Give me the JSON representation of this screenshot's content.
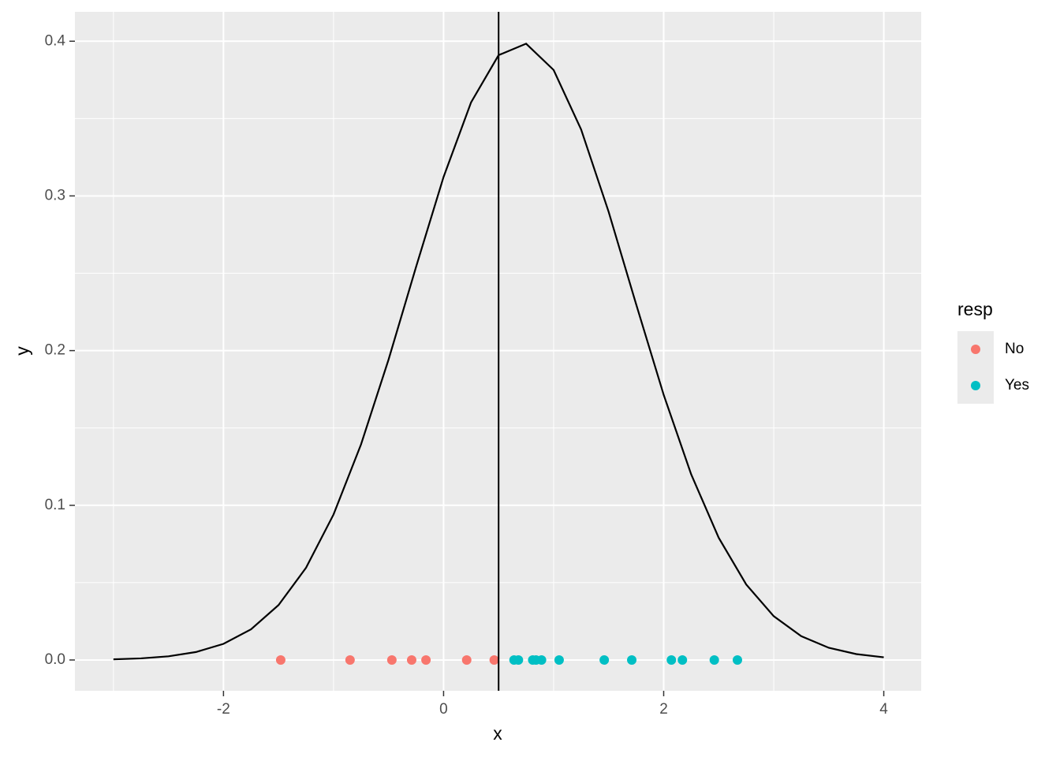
{
  "chart_data": {
    "type": "scatter",
    "xlabel": "x",
    "ylabel": "y",
    "xlim": [
      -3.35,
      4.34
    ],
    "ylim": [
      -0.0199,
      0.419
    ],
    "xticks": [
      -2,
      0,
      2,
      4
    ],
    "yticks": [
      {
        "value": 0,
        "label": "0.0"
      },
      0.1,
      0.2,
      0.3,
      0.4
    ],
    "xminor": [
      -3,
      -1,
      1,
      3
    ],
    "yminor": [
      0.05,
      0.15,
      0.25,
      0.35
    ],
    "grid": true,
    "vline": 0.5,
    "legend_title": "resp",
    "legend": "right",
    "curve": {
      "color": "#000000",
      "x": [
        -3,
        -2.75,
        -2.5,
        -2.25,
        -2,
        -1.75,
        -1.5,
        -1.25,
        -1,
        -0.75,
        -0.5,
        -0.25,
        0,
        0.25,
        0.5,
        0.75,
        1,
        1.25,
        1.5,
        1.75,
        2,
        2.25,
        2.5,
        2.75,
        3,
        3.25,
        3.5,
        3.75,
        4
      ],
      "values": [
        0.000425,
        0.00104,
        0.00238,
        0.00514,
        0.01042,
        0.01984,
        0.03547,
        0.05959,
        0.09405,
        0.1394,
        0.1942,
        0.2541,
        0.3123,
        0.3605,
        0.391,
        0.3984,
        0.3814,
        0.3429,
        0.2897,
        0.2299,
        0.1714,
        0.12,
        0.079,
        0.0488,
        0.0283,
        0.0154,
        0.0079,
        0.0038,
        0.00172
      ]
    },
    "series": [
      {
        "name": "No",
        "color": "#F8766D",
        "x": [
          -1.48,
          -0.85,
          -0.47,
          -0.29,
          -0.16,
          0.21,
          0.46
        ],
        "values": [
          0,
          0,
          0,
          0,
          0,
          0,
          0
        ]
      },
      {
        "name": "Yes",
        "color": "#00BFC4",
        "x": [
          0.64,
          0.68,
          0.81,
          0.84,
          0.89,
          1.05,
          1.46,
          1.71,
          2.07,
          2.17,
          2.46,
          2.67
        ],
        "values": [
          0,
          0,
          0,
          0,
          0,
          0,
          0,
          0,
          0,
          0,
          0,
          0
        ]
      }
    ]
  }
}
